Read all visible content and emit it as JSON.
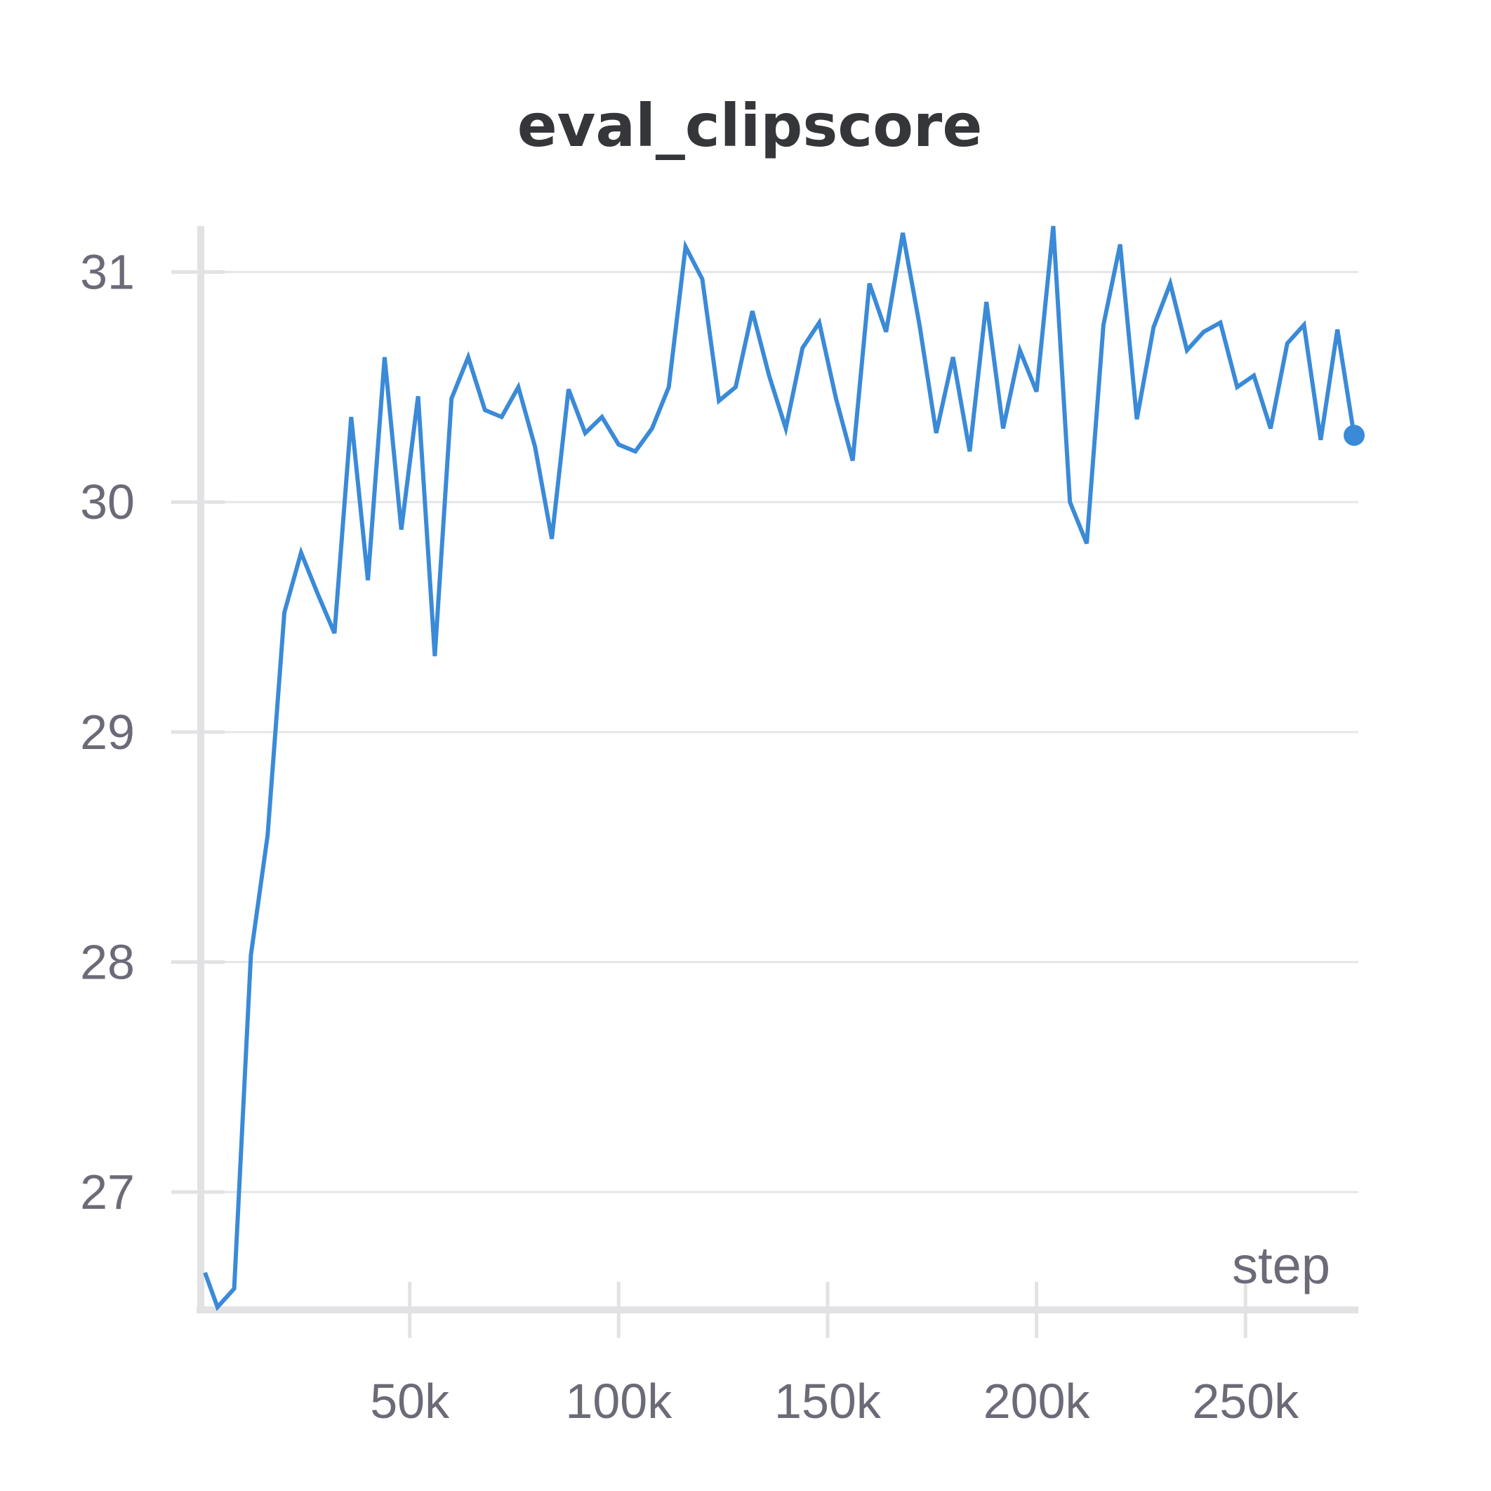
{
  "colors": {
    "line": "#3a8ad8",
    "grid": "#e6e6e6",
    "axis": "#e2e2e4",
    "text": "#6b6b78",
    "title": "#34363a"
  },
  "chart_data": {
    "type": "line",
    "title": "eval_clipscore",
    "xlabel": "step",
    "ylabel": "",
    "xlim": [
      0,
      277000
    ],
    "ylim": [
      26.5,
      31.2
    ],
    "grid": true,
    "x_ticks": [
      50000,
      100000,
      150000,
      200000,
      250000
    ],
    "x_tick_labels": [
      "50k",
      "100k",
      "150k",
      "200k",
      "250k"
    ],
    "y_ticks": [
      27,
      28,
      29,
      30,
      31
    ],
    "y_tick_labels": [
      "27",
      "28",
      "29",
      "30",
      "31"
    ],
    "series": [
      {
        "x": [
          1000,
          4000,
          8000,
          12000,
          16000,
          20000,
          24000,
          28000,
          32000,
          36000,
          40000,
          44000,
          48000,
          52000,
          56000,
          60000,
          64000,
          68000,
          72000,
          76000,
          80000,
          84000,
          88000,
          92000,
          96000,
          100000,
          104000,
          108000,
          112000,
          116000,
          120000,
          124000,
          128000,
          132000,
          136000,
          140000,
          144000,
          148000,
          152000,
          156000,
          160000,
          164000,
          168000,
          172000,
          176000,
          180000,
          184000,
          188000,
          192000,
          196000,
          200000,
          204000,
          208000,
          212000,
          216000,
          220000,
          224000,
          228000,
          232000,
          236000,
          240000,
          244000,
          248000,
          252000,
          256000,
          260000,
          264000,
          268000,
          272000,
          276000
        ],
        "values": [
          26.65,
          26.5,
          26.58,
          28.03,
          28.55,
          29.52,
          29.78,
          29.6,
          29.43,
          30.37,
          29.66,
          30.63,
          29.88,
          30.46,
          29.33,
          30.45,
          30.63,
          30.4,
          30.37,
          30.5,
          30.24,
          29.84,
          30.49,
          30.3,
          30.37,
          30.25,
          30.22,
          30.32,
          30.5,
          31.11,
          30.97,
          30.44,
          30.5,
          30.83,
          30.55,
          30.32,
          30.67,
          30.78,
          30.45,
          30.18,
          30.95,
          30.74,
          31.17,
          30.77,
          30.3,
          30.63,
          30.22,
          30.87,
          30.32,
          30.66,
          30.48,
          31.2,
          30,
          29.82,
          30.77,
          31.12,
          30.36,
          30.76,
          30.95,
          30.66,
          30.74,
          30.78,
          30.5,
          30.55,
          30.32,
          30.69,
          30.77,
          30.27,
          30.75,
          30.29
        ]
      }
    ]
  }
}
